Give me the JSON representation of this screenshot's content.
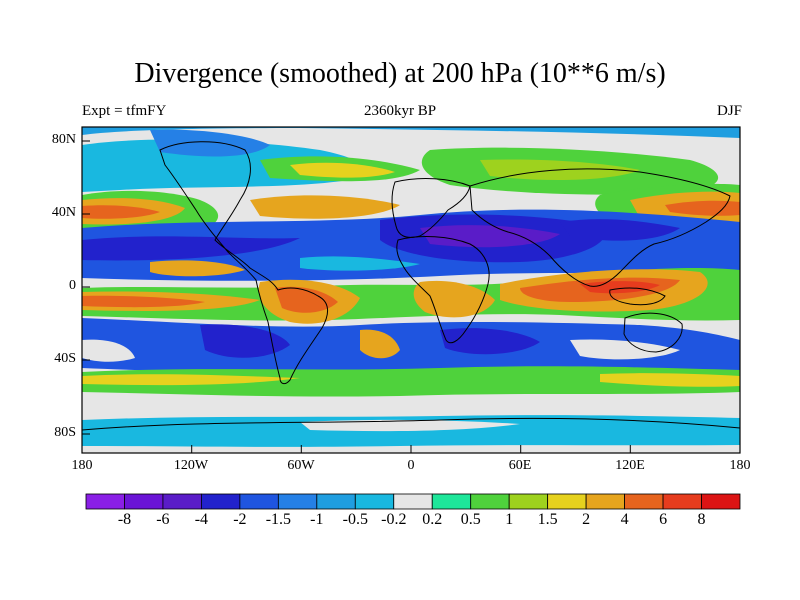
{
  "title": "Divergence (smoothed) at 200 hPa (10**6 m/s)",
  "subtitle_left": "Expt = tfmFY",
  "subtitle_center": "2360kyr BP",
  "subtitle_right": "DJF",
  "lat_labels": [
    "80N",
    "40N",
    "0",
    "40S",
    "80S"
  ],
  "lon_labels": [
    "180",
    "120W",
    "60W",
    "0",
    "60E",
    "120E",
    "180"
  ],
  "colorbar": {
    "labels": [
      "-8",
      "-6",
      "-4",
      "-2",
      "-1.5",
      "-1",
      "-0.5",
      "-0.2",
      "0.2",
      "0.5",
      "1",
      "1.5",
      "2",
      "4",
      "6",
      "8"
    ],
    "colors": [
      "#8a1fe6",
      "#6a14d6",
      "#5a1cc8",
      "#2222cc",
      "#1f55e0",
      "#2580e6",
      "#1f9ee0",
      "#19b8e0",
      "#e6e6e6",
      "#1ee69a",
      "#4fd23c",
      "#9ed21e",
      "#e6d21e",
      "#e6a51e",
      "#e6641e",
      "#e63c1e",
      "#dc1414"
    ]
  },
  "map": {
    "fill_colors": {
      "background": "#e6e6e6",
      "deep_blue": "#2222cc",
      "purple": "#5a1cc8",
      "mid_blue": "#1f55e0",
      "light_blue": "#2580e6",
      "cyan": "#19b8e0",
      "green": "#4fd23c",
      "yellow": "#e6d21e",
      "orange": "#e6a51e",
      "red_orange": "#e6641e",
      "red": "#e63c1e"
    }
  }
}
